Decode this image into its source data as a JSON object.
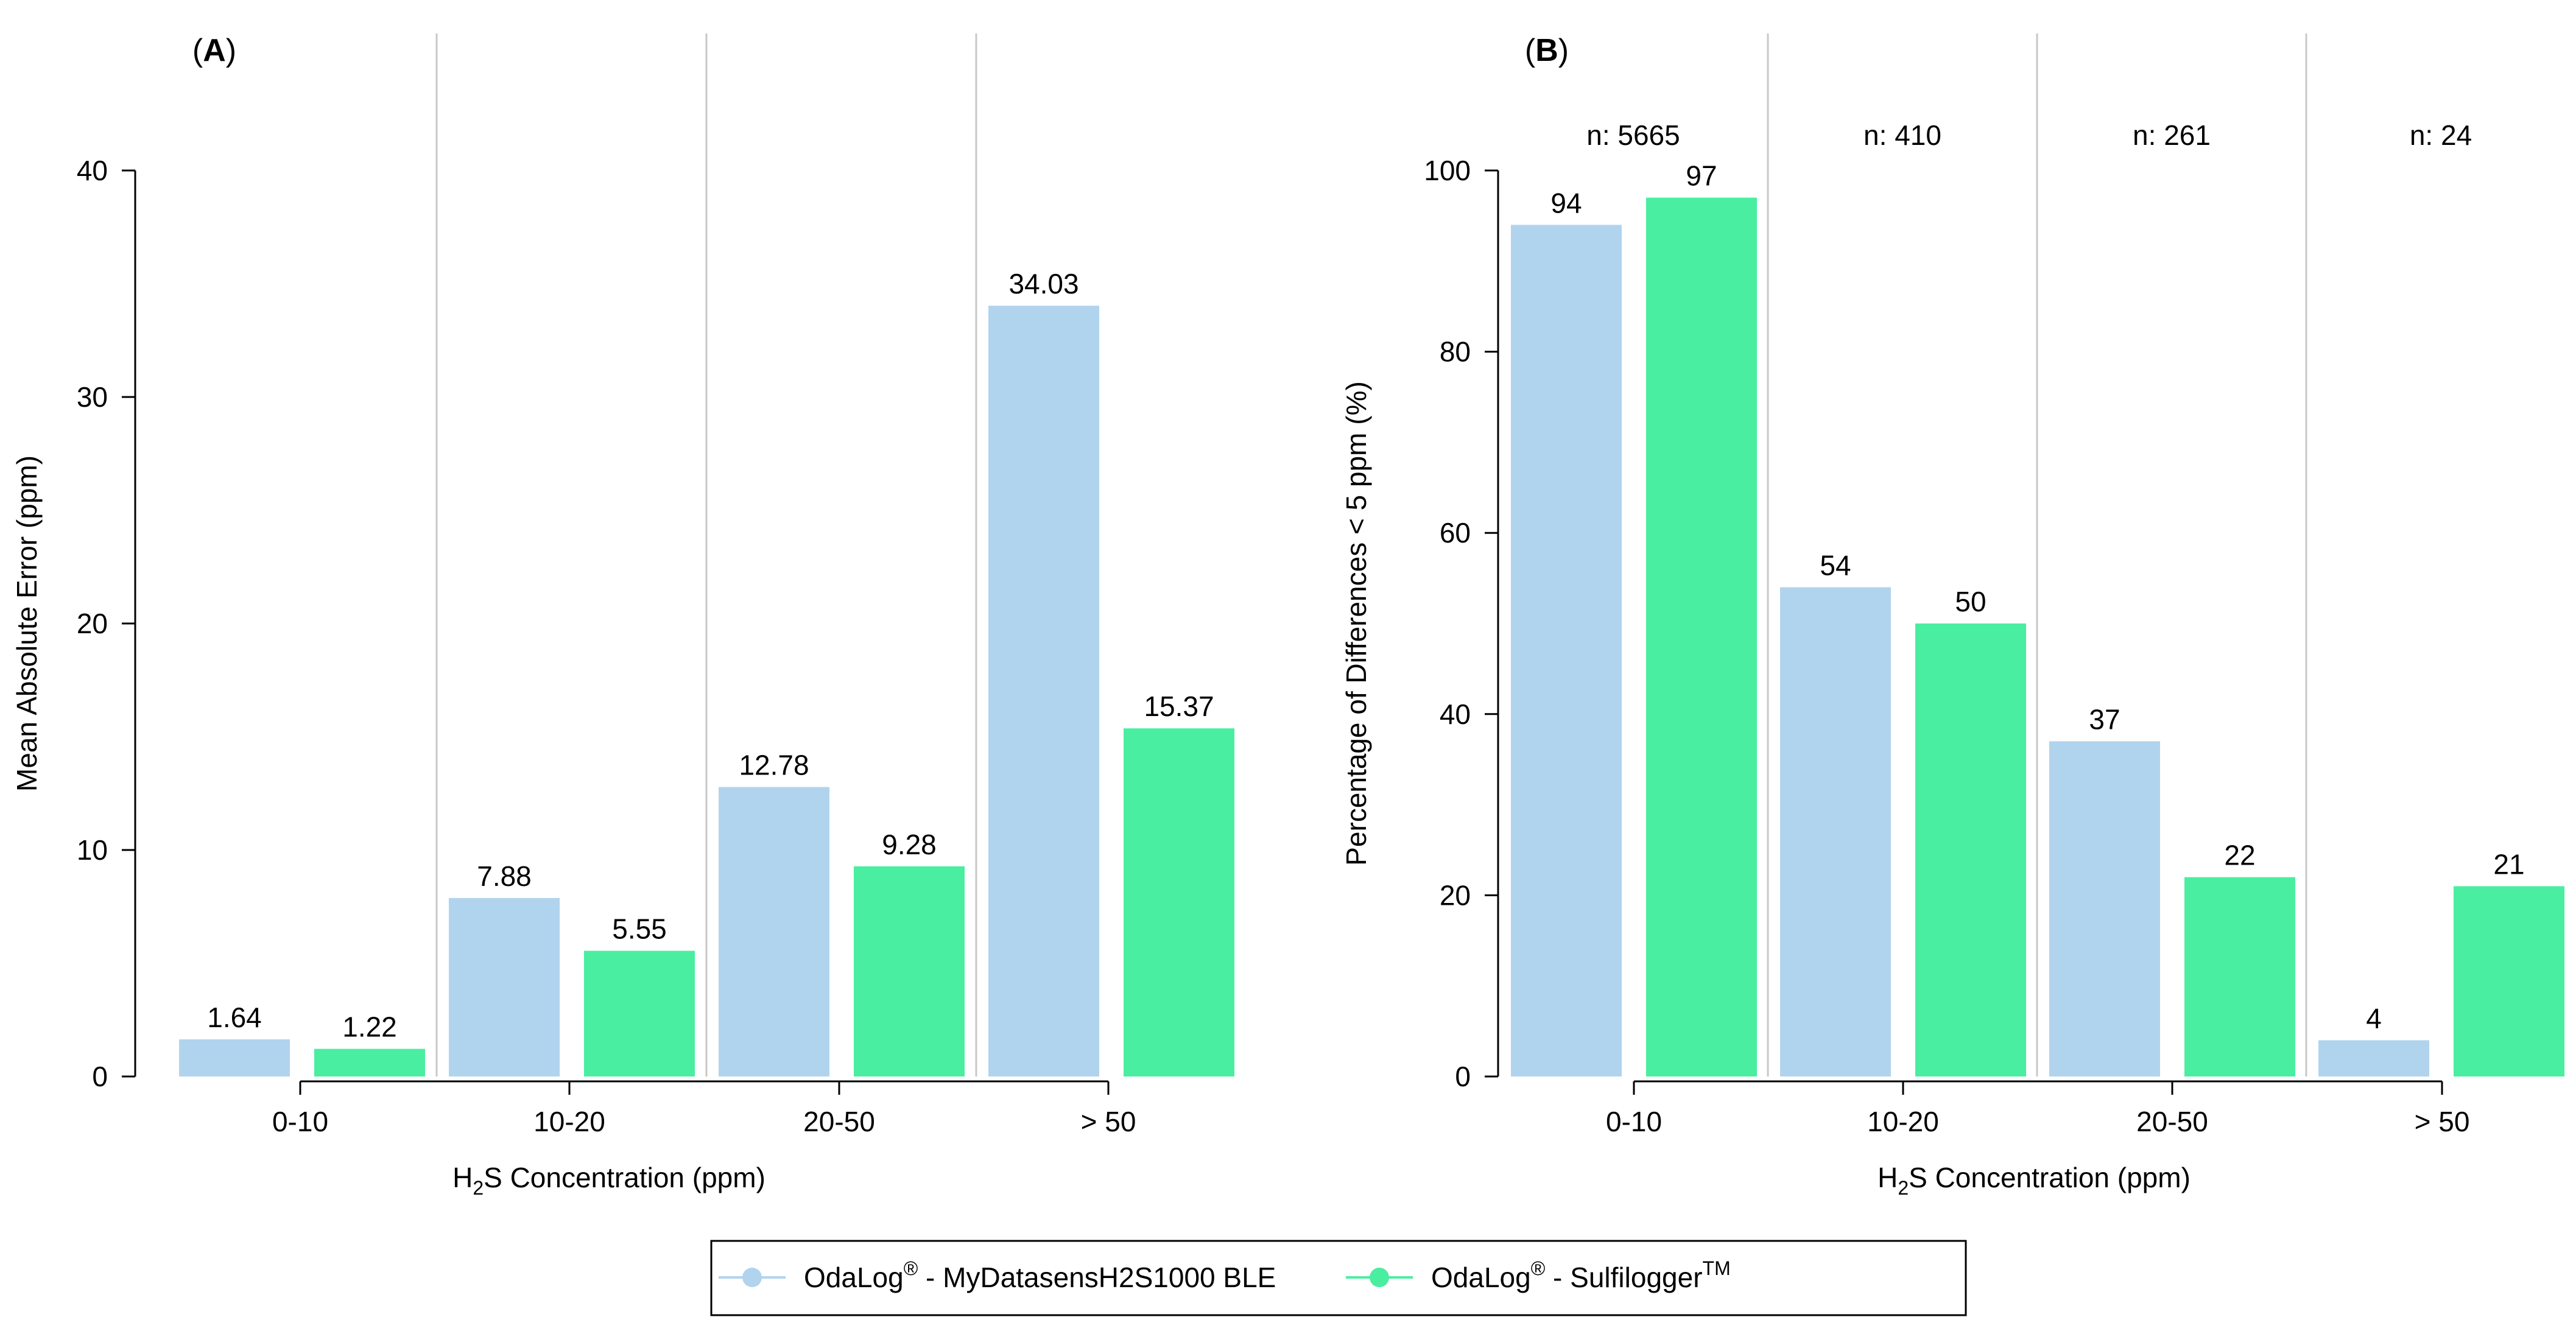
{
  "chart_data": [
    {
      "type": "bar",
      "panel_label": "A",
      "xlabel": {
        "main": "H",
        "sub": "2",
        "rest": "S Concentration  (ppm)"
      },
      "ylabel": "Mean Absolute Error (ppm)",
      "ylim": [
        0,
        40
      ],
      "yticks": [
        "0",
        "10",
        "20",
        "30",
        "40"
      ],
      "categories": [
        "0-10",
        "10-20",
        "20-50",
        "> 50"
      ],
      "series": [
        {
          "name": "OdaLog® - MyDatasensH2S1000 BLE",
          "values": [
            1.64,
            7.88,
            12.78,
            34.03
          ],
          "labels": [
            "1.64",
            "7.88",
            "12.78",
            "34.03"
          ]
        },
        {
          "name": "OdaLog® - Sulfilogger™",
          "values": [
            1.22,
            5.55,
            9.28,
            15.37
          ],
          "labels": [
            "1.22",
            "5.55",
            "9.28",
            "15.37"
          ]
        }
      ]
    },
    {
      "type": "bar",
      "panel_label": "B",
      "xlabel": {
        "main": "H",
        "sub": "2",
        "rest": "S Concentration  (ppm)"
      },
      "ylabel": "Percentage of Differences < 5 ppm (%)",
      "ylim": [
        0,
        100
      ],
      "yticks": [
        "0",
        "20",
        "40",
        "60",
        "80",
        "100"
      ],
      "categories": [
        "0-10",
        "10-20",
        "20-50",
        "> 50"
      ],
      "group_counts": [
        "n: 5665",
        "n: 410",
        "n: 261",
        "n: 24"
      ],
      "series": [
        {
          "name": "OdaLog® - MyDatasensH2S1000 BLE",
          "values": [
            94,
            54,
            37,
            4
          ],
          "labels": [
            "94",
            "54",
            "37",
            "4"
          ]
        },
        {
          "name": "OdaLog® - Sulfilogger™",
          "values": [
            97,
            50,
            22,
            21
          ],
          "labels": [
            "97",
            "50",
            "22",
            "21"
          ]
        }
      ]
    }
  ],
  "legend": {
    "position": "bottom-center",
    "items": [
      {
        "text_main": "OdaLog",
        "sup1": "®",
        "text_rest": " - MyDatasensH2S1000 BLE",
        "sup2": "",
        "color": "#b1d4ee"
      },
      {
        "text_main": "OdaLog",
        "sup1": "®",
        "text_rest": " - Sulfilogger",
        "sup2": "TM",
        "color": "#4aeea0"
      }
    ]
  },
  "colors": {
    "series1": "#b1d4ee",
    "series2": "#4aeea0",
    "separator": "#c8c8c8"
  }
}
